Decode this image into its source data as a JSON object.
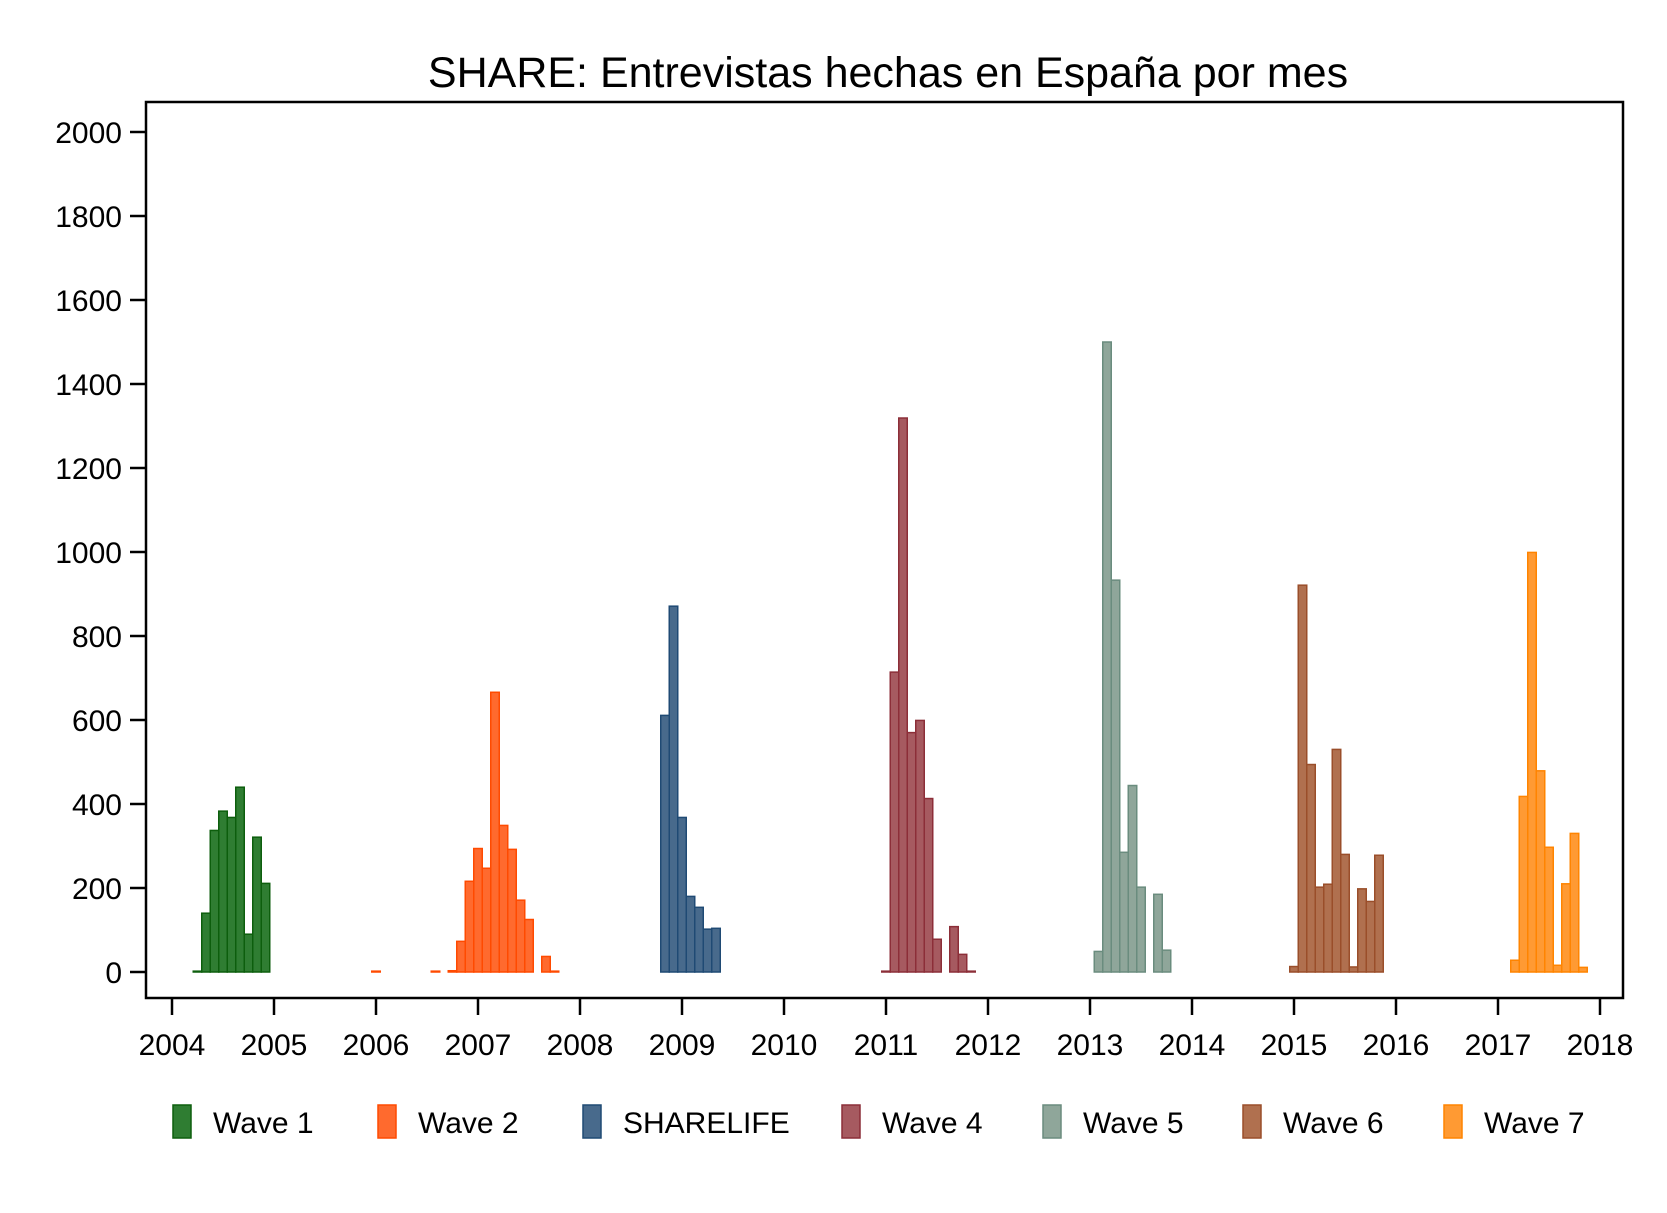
{
  "chart_data": {
    "type": "bar",
    "title": "SHARE: Entrevistas hechas en España por mes",
    "xlabel": "",
    "ylabel": "",
    "x_unit": "month index since January 2004",
    "xlim": [
      2004,
      2018
    ],
    "ylim": [
      0,
      2000
    ],
    "y_ticks": [
      0,
      200,
      400,
      600,
      800,
      1000,
      1200,
      1400,
      1600,
      1800,
      2000
    ],
    "x_ticks": [
      2004,
      2005,
      2006,
      2007,
      2008,
      2009,
      2010,
      2011,
      2012,
      2013,
      2014,
      2015,
      2016,
      2017,
      2018
    ],
    "grid": false,
    "legend_position": "bottom",
    "series": [
      {
        "name": "Wave 1",
        "color": "#2f7d32",
        "stroke": "#0d5e0d",
        "months": [
          2,
          3,
          4,
          5,
          6,
          7,
          8,
          9,
          10
        ],
        "values": [
          2,
          140,
          337,
          383,
          368,
          440,
          90,
          321,
          211
        ]
      },
      {
        "name": "Wave 2",
        "color": "#ff6a2e",
        "stroke": "#ff4a00",
        "months": [
          23,
          30,
          32,
          33,
          34,
          35,
          36,
          37,
          38,
          39,
          40,
          41,
          43,
          44
        ],
        "values": [
          2,
          2,
          3,
          73,
          216,
          294,
          247,
          666,
          349,
          292,
          171,
          125,
          37,
          2
        ]
      },
      {
        "name": "SHARELIFE",
        "color": "#486a8c",
        "stroke": "#1f4a74",
        "months": [
          57,
          58,
          59,
          60,
          61,
          62,
          63
        ],
        "values": [
          611,
          871,
          368,
          180,
          154,
          102,
          104
        ]
      },
      {
        "name": "Wave 4",
        "color": "#a65a60",
        "stroke": "#8c2e38",
        "months": [
          83,
          84,
          85,
          86,
          87,
          88,
          89,
          91,
          92,
          93
        ],
        "values": [
          2,
          714,
          1319,
          570,
          599,
          413,
          78,
          108,
          42,
          2
        ]
      },
      {
        "name": "Wave 5",
        "color": "#8fa69a",
        "stroke": "#6a8c7e",
        "months": [
          108,
          109,
          110,
          111,
          112,
          113,
          115,
          116
        ],
        "values": [
          49,
          1500,
          933,
          285,
          444,
          202,
          185,
          52
        ]
      },
      {
        "name": "Wave 6",
        "color": "#b0704f",
        "stroke": "#9a4e2a",
        "months": [
          131,
          132,
          133,
          134,
          135,
          136,
          137,
          138,
          139,
          140,
          141
        ],
        "values": [
          13,
          921,
          494,
          202,
          209,
          530,
          280,
          12,
          198,
          168,
          278
        ]
      },
      {
        "name": "Wave 7",
        "color": "#ff9a33",
        "stroke": "#ff8400",
        "months": [
          157,
          158,
          159,
          160,
          161,
          162,
          163,
          164,
          165
        ],
        "values": [
          28,
          418,
          999,
          479,
          297,
          16,
          210,
          330,
          11
        ]
      }
    ]
  }
}
